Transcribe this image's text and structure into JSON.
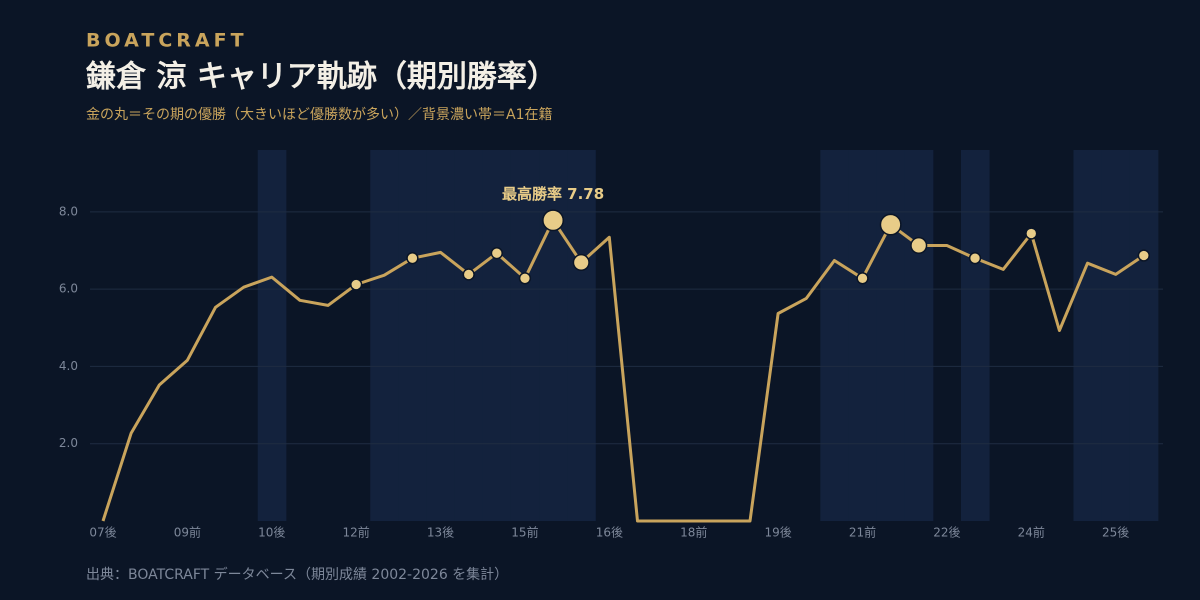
{
  "chart_data": {
    "type": "line",
    "brand": "BOATCRAFT",
    "title": "鎌倉 涼  キャリア軌跡（期別勝率）",
    "subtitle": "金の丸＝その期の優勝（大きいほど優勝数が多い）／背景濃い帯＝A1在籍",
    "source": "出典：BOATCRAFT データベース（期別成績 2002-2026 を集計）",
    "annotation": "最高勝率 7.78",
    "categories": [
      "07後",
      null,
      null,
      "09前",
      null,
      null,
      "10後",
      null,
      null,
      "12前",
      null,
      null,
      "13後",
      null,
      null,
      "15前",
      null,
      null,
      "16後",
      null,
      null,
      "18前",
      null,
      null,
      "19後",
      null,
      null,
      "21前",
      null,
      null,
      "22後",
      null,
      null,
      "24前",
      null,
      null,
      "25後",
      null
    ],
    "series": [
      {
        "name": "勝率",
        "color": "#c9a45c",
        "values": [
          0,
          2.27,
          3.52,
          4.16,
          5.53,
          6.05,
          6.31,
          5.71,
          5.58,
          6.12,
          6.36,
          6.8,
          6.95,
          6.38,
          6.93,
          6.28,
          7.78,
          6.69,
          7.34,
          0,
          0,
          0,
          0,
          0,
          5.37,
          5.76,
          6.74,
          6.28,
          7.67,
          7.13,
          7.13,
          6.8,
          6.51,
          7.44,
          4.93,
          6.67,
          6.38,
          6.87
        ]
      }
    ],
    "wins": [
      null,
      null,
      null,
      null,
      null,
      null,
      null,
      null,
      null,
      1,
      null,
      1,
      null,
      1,
      1,
      1,
      3,
      2,
      null,
      null,
      null,
      null,
      null,
      null,
      null,
      null,
      null,
      1,
      3,
      2,
      null,
      1,
      null,
      1,
      null,
      null,
      null,
      1
    ],
    "wins_color": "#e8cc88",
    "a1": [
      false,
      false,
      false,
      false,
      false,
      false,
      true,
      false,
      false,
      false,
      true,
      true,
      true,
      true,
      true,
      true,
      true,
      true,
      false,
      false,
      false,
      false,
      false,
      false,
      false,
      false,
      true,
      true,
      true,
      true,
      false,
      true,
      false,
      false,
      false,
      true,
      true,
      true
    ],
    "a1_color": "#13223d",
    "ylim": [
      0,
      9.6
    ],
    "yticks": [
      {
        "value": 2,
        "label": "2.0"
      },
      {
        "value": 4,
        "label": "4.0"
      },
      {
        "value": 6,
        "label": "6.0"
      },
      {
        "value": 8,
        "label": "8.0"
      }
    ],
    "grid": true
  }
}
